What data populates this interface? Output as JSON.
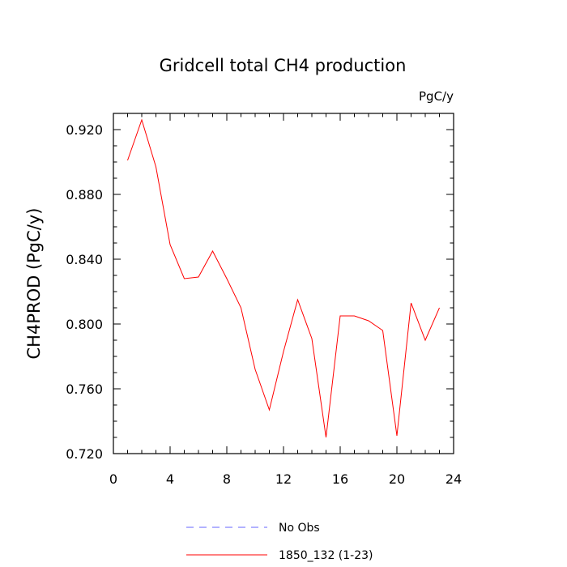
{
  "chart_data": {
    "type": "line",
    "title": "Gridcell total CH4 production",
    "units": "PgC/y",
    "xlabel": "",
    "ylabel": "CH4PROD  (PgC/y)",
    "xlim": [
      0,
      24
    ],
    "ylim": [
      0.72,
      0.93
    ],
    "xticks": [
      0,
      4,
      8,
      12,
      16,
      20,
      24
    ],
    "xtick_labels": [
      "0",
      "4",
      "8",
      "12",
      "16",
      "20",
      "24"
    ],
    "yticks": [
      0.72,
      0.76,
      0.8,
      0.84,
      0.88,
      0.92
    ],
    "ytick_labels": [
      "0.720",
      "0.760",
      "0.800",
      "0.840",
      "0.880",
      "0.920"
    ],
    "grid": false,
    "legend_position": "bottom",
    "legend": [
      {
        "label": "No Obs",
        "color": "#6666ff",
        "style": "dashed"
      },
      {
        "label": "1850_132 (1-23)",
        "color": "#ff0000",
        "style": "solid"
      }
    ],
    "series": [
      {
        "name": "1850_132 (1-23)",
        "color": "#ff0000",
        "x": [
          1,
          2,
          3,
          4,
          5,
          6,
          7,
          8,
          9,
          10,
          11,
          12,
          13,
          14,
          15,
          16,
          17,
          18,
          19,
          20,
          21,
          22,
          23
        ],
        "y": [
          0.901,
          0.926,
          0.897,
          0.849,
          0.828,
          0.829,
          0.845,
          0.828,
          0.81,
          0.772,
          0.747,
          0.783,
          0.815,
          0.791,
          0.73,
          0.805,
          0.805,
          0.802,
          0.796,
          0.731,
          0.813,
          0.79,
          0.81
        ]
      }
    ]
  }
}
